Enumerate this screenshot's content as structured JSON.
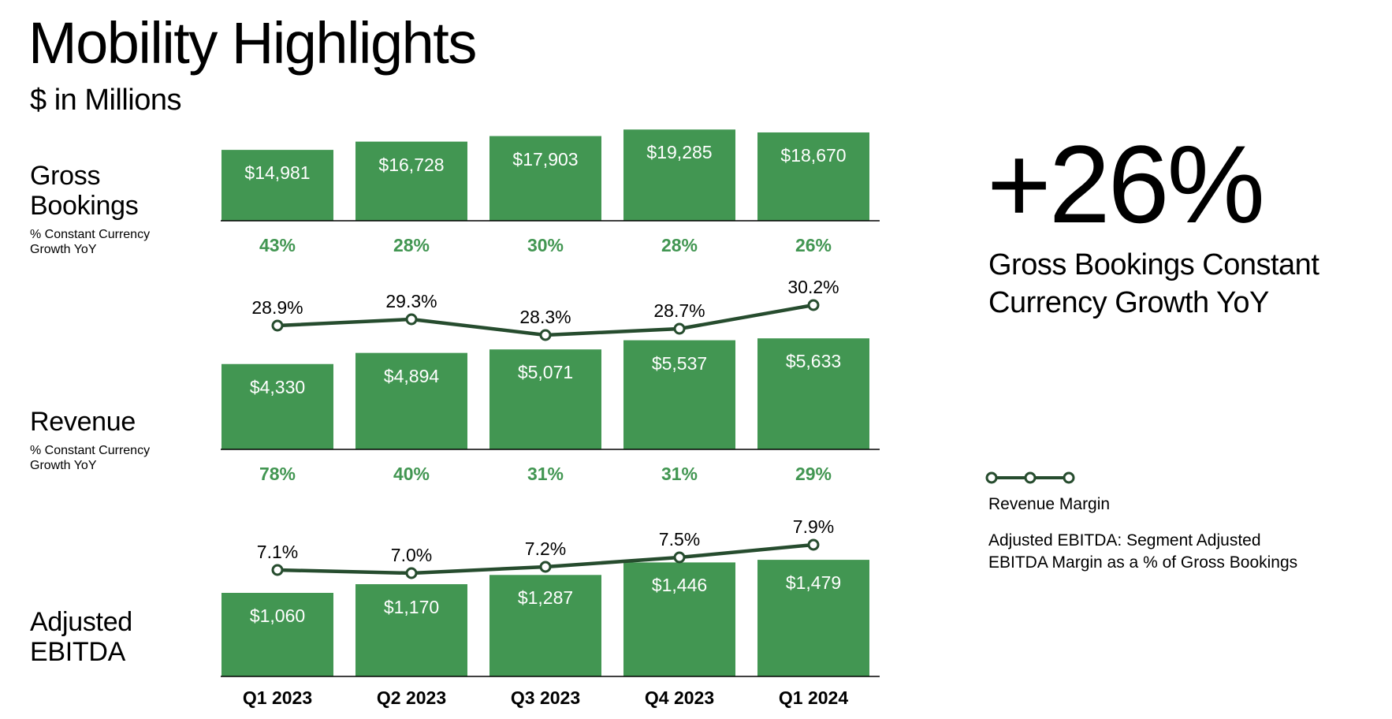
{
  "page": {
    "title": "Mobility Highlights",
    "subtitle": "$ in Millions",
    "headline_value": "+26%",
    "headline_caption": "Gross Bookings Constant Currency Growth YoY",
    "legend_label": "Revenue Margin",
    "footnote": "Adjusted EBITDA: Segment Adjusted EBITDA Margin as a % of Gross Bookings"
  },
  "colors": {
    "bar": "#429652",
    "line": "#264c2e",
    "growth_text": "#429652",
    "bar_label": "#ffffff",
    "axis": "#000000"
  },
  "chart_data": [
    {
      "type": "bar",
      "title": "Gross Bookings",
      "categories": [
        "Q1 2023",
        "Q2 2023",
        "Q3 2023",
        "Q4 2023",
        "Q1 2024"
      ],
      "values": [
        14981,
        16728,
        17903,
        19285,
        18670
      ],
      "value_labels": [
        "$14,981",
        "$16,728",
        "$17,903",
        "$19,285",
        "$18,670"
      ],
      "growth_label": "% Constant Currency Growth YoY",
      "growth": [
        "43%",
        "28%",
        "30%",
        "28%",
        "26%"
      ]
    },
    {
      "type": "bar",
      "title": "Revenue",
      "categories": [
        "Q1 2023",
        "Q2 2023",
        "Q3 2023",
        "Q4 2023",
        "Q1 2024"
      ],
      "values": [
        4330,
        4894,
        5071,
        5537,
        5633
      ],
      "value_labels": [
        "$4,330",
        "$4,894",
        "$5,071",
        "$5,537",
        "$5,633"
      ],
      "growth_label": "% Constant Currency Growth YoY",
      "growth": [
        "78%",
        "40%",
        "31%",
        "31%",
        "29%"
      ],
      "line": {
        "name": "Revenue Margin",
        "values": [
          28.9,
          29.3,
          28.3,
          28.7,
          30.2
        ],
        "labels": [
          "28.9%",
          "29.3%",
          "28.3%",
          "28.7%",
          "30.2%"
        ]
      }
    },
    {
      "type": "bar",
      "title": "Adjusted EBITDA",
      "categories": [
        "Q1 2023",
        "Q2 2023",
        "Q3 2023",
        "Q4 2023",
        "Q1 2024"
      ],
      "values": [
        1060,
        1170,
        1287,
        1446,
        1479
      ],
      "value_labels": [
        "$1,060",
        "$1,170",
        "$1,287",
        "$1,446",
        "$1,479"
      ],
      "line": {
        "name": "Adjusted EBITDA Margin",
        "values": [
          7.1,
          7.0,
          7.2,
          7.5,
          7.9
        ],
        "labels": [
          "7.1%",
          "7.0%",
          "7.2%",
          "7.5%",
          "7.9%"
        ]
      }
    }
  ]
}
